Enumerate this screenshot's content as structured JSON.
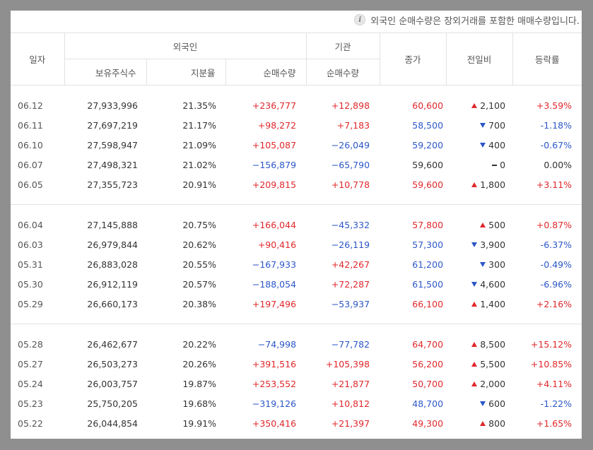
{
  "notice": "외국인 순매수량은 장외거래를 포함한 매매수량입니다.",
  "header": {
    "date": "일자",
    "foreign_group": "외국인",
    "institution_group": "기관",
    "holdings": "보유주식수",
    "ratio": "지분율",
    "foreign_net": "순매수량",
    "institution_net": "순매수량",
    "close": "종가",
    "change": "전일비",
    "rate": "등락률"
  },
  "rows": [
    {
      "date": "06.12",
      "holdings": "27,933,996",
      "ratio": "21.35%",
      "foreign_net": "+236,777",
      "inst_net": "+12,898",
      "close": "60,600",
      "change": "2,100",
      "rate": "+3.59%",
      "dir": "up",
      "fdir": "pos",
      "idir": "pos"
    },
    {
      "date": "06.11",
      "holdings": "27,697,219",
      "ratio": "21.17%",
      "foreign_net": "+98,272",
      "inst_net": "+7,183",
      "close": "58,500",
      "change": "700",
      "rate": "-1.18%",
      "dir": "down",
      "fdir": "pos",
      "idir": "pos"
    },
    {
      "date": "06.10",
      "holdings": "27,598,947",
      "ratio": "21.09%",
      "foreign_net": "+105,087",
      "inst_net": "−26,049",
      "close": "59,200",
      "change": "400",
      "rate": "-0.67%",
      "dir": "down",
      "fdir": "pos",
      "idir": "neg"
    },
    {
      "date": "06.07",
      "holdings": "27,498,321",
      "ratio": "21.02%",
      "foreign_net": "−156,879",
      "inst_net": "−65,790",
      "close": "59,600",
      "change": "0",
      "rate": "0.00%",
      "dir": "flat",
      "fdir": "neg",
      "idir": "neg"
    },
    {
      "date": "06.05",
      "holdings": "27,355,723",
      "ratio": "20.91%",
      "foreign_net": "+209,815",
      "inst_net": "+10,778",
      "close": "59,600",
      "change": "1,800",
      "rate": "+3.11%",
      "dir": "up",
      "fdir": "pos",
      "idir": "pos"
    },
    {
      "date": "06.04",
      "holdings": "27,145,888",
      "ratio": "20.75%",
      "foreign_net": "+166,044",
      "inst_net": "−45,332",
      "close": "57,800",
      "change": "500",
      "rate": "+0.87%",
      "dir": "up",
      "fdir": "pos",
      "idir": "neg"
    },
    {
      "date": "06.03",
      "holdings": "26,979,844",
      "ratio": "20.62%",
      "foreign_net": "+90,416",
      "inst_net": "−26,119",
      "close": "57,300",
      "change": "3,900",
      "rate": "-6.37%",
      "dir": "down",
      "fdir": "pos",
      "idir": "neg"
    },
    {
      "date": "05.31",
      "holdings": "26,883,028",
      "ratio": "20.55%",
      "foreign_net": "−167,933",
      "inst_net": "+42,267",
      "close": "61,200",
      "change": "300",
      "rate": "-0.49%",
      "dir": "down",
      "fdir": "neg",
      "idir": "pos"
    },
    {
      "date": "05.30",
      "holdings": "26,912,119",
      "ratio": "20.57%",
      "foreign_net": "−188,054",
      "inst_net": "+72,287",
      "close": "61,500",
      "change": "4,600",
      "rate": "-6.96%",
      "dir": "down",
      "fdir": "neg",
      "idir": "pos"
    },
    {
      "date": "05.29",
      "holdings": "26,660,173",
      "ratio": "20.38%",
      "foreign_net": "+197,496",
      "inst_net": "−53,937",
      "close": "66,100",
      "change": "1,400",
      "rate": "+2.16%",
      "dir": "up",
      "fdir": "pos",
      "idir": "neg"
    },
    {
      "date": "05.28",
      "holdings": "26,462,677",
      "ratio": "20.22%",
      "foreign_net": "−74,998",
      "inst_net": "−77,782",
      "close": "64,700",
      "change": "8,500",
      "rate": "+15.12%",
      "dir": "up",
      "fdir": "neg",
      "idir": "neg"
    },
    {
      "date": "05.27",
      "holdings": "26,503,273",
      "ratio": "20.26%",
      "foreign_net": "+391,516",
      "inst_net": "+105,398",
      "close": "56,200",
      "change": "5,500",
      "rate": "+10.85%",
      "dir": "up",
      "fdir": "pos",
      "idir": "pos"
    },
    {
      "date": "05.24",
      "holdings": "26,003,757",
      "ratio": "19.87%",
      "foreign_net": "+253,552",
      "inst_net": "+21,877",
      "close": "50,700",
      "change": "2,000",
      "rate": "+4.11%",
      "dir": "up",
      "fdir": "pos",
      "idir": "pos"
    },
    {
      "date": "05.23",
      "holdings": "25,750,205",
      "ratio": "19.68%",
      "foreign_net": "−319,126",
      "inst_net": "+10,812",
      "close": "48,700",
      "change": "600",
      "rate": "-1.22%",
      "dir": "down",
      "fdir": "neg",
      "idir": "pos"
    },
    {
      "date": "05.22",
      "holdings": "26,044,854",
      "ratio": "19.91%",
      "foreign_net": "+350,416",
      "inst_net": "+21,397",
      "close": "49,300",
      "change": "800",
      "rate": "+1.65%",
      "dir": "up",
      "fdir": "pos",
      "idir": "pos"
    }
  ],
  "colors": {
    "up": "#e0272b",
    "down": "#2c57c7"
  }
}
